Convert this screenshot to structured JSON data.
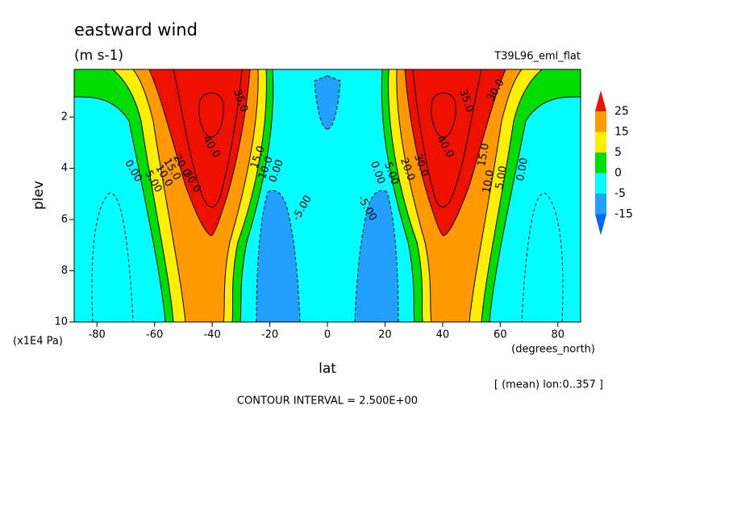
{
  "chart_data": {
    "type": "contour",
    "title": "eastward wind",
    "subtitle": "(m s-1)",
    "experiment": "T39L96_eml_flat",
    "y_label": "plev",
    "y_unit": "(x1E4 Pa)",
    "x_label": "lat",
    "x_unit": "(degrees_north)",
    "mean_note": "[ (mean) lon:0..357 ]",
    "contour_interval": "CONTOUR INTERVAL = 2.500E+00",
    "xlim": [
      -87.9,
      87.9
    ],
    "xticks": [
      -80,
      -60,
      -40,
      -20,
      0,
      20,
      40,
      60,
      80
    ],
    "ylim": [
      0.14,
      10
    ],
    "yticks": [
      2,
      4,
      6,
      8,
      10
    ],
    "colorbar": {
      "levels": [
        25,
        15,
        5,
        0,
        -5,
        -15
      ],
      "colors": [
        "#ee1100",
        "#ff9900",
        "#ffee00",
        "#00dd00",
        "#00ffff",
        "#22a0ff",
        "#0064ff"
      ]
    },
    "contour_labels": [
      "35.0",
      "40.0",
      "0.00",
      "5.00",
      "10.0",
      "15.0",
      "20.0",
      "30.0",
      "15.0",
      "10.0",
      "0.00",
      "-5.00",
      "35.0",
      "30.0",
      "40.0",
      "15.0",
      "10.0",
      "5.00",
      "0.00",
      "-5.00",
      "0.00",
      "5.00",
      "20.0",
      "30.0"
    ]
  }
}
